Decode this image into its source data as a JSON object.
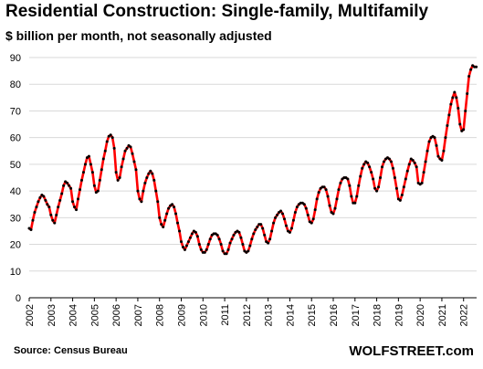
{
  "chart_data": {
    "type": "line",
    "title": "Residential Construction:  Single-family, Multifamily",
    "subtitle": "$ billion per month, not seasonally adjusted",
    "xlabel": "",
    "ylabel": "",
    "ylim": [
      0,
      90
    ],
    "yticks": [
      0,
      10,
      20,
      30,
      40,
      50,
      60,
      70,
      80,
      90
    ],
    "xlim": [
      2002,
      2022.6
    ],
    "xticks": [
      "2002",
      "2003",
      "2004",
      "2005",
      "2006",
      "2007",
      "2008",
      "2009",
      "2010",
      "2011",
      "2012",
      "2013",
      "2014",
      "2015",
      "2016",
      "2017",
      "2018",
      "2019",
      "2020",
      "2021",
      "2022"
    ],
    "grid": "horizontal",
    "line_color": "#ff0000",
    "marker_color": "#000000",
    "series": [
      {
        "values": [
          26,
          25.5,
          29,
          32,
          34,
          36,
          37.5,
          38.5,
          38,
          36.5,
          35,
          34,
          31,
          29,
          28,
          31,
          34,
          36.5,
          39,
          42,
          43.5,
          43,
          42,
          41,
          36,
          34,
          33,
          37,
          40.5,
          44,
          47,
          50,
          52.5,
          53,
          50,
          47,
          42,
          39.5,
          40,
          44,
          48,
          52,
          55,
          58.5,
          60.5,
          61,
          60,
          56,
          47,
          44,
          45,
          49,
          52,
          55,
          56,
          57,
          56.5,
          54,
          51,
          48,
          40,
          37,
          36,
          40,
          43,
          45,
          46.5,
          47.5,
          46.5,
          44,
          40,
          36,
          30,
          27.5,
          26.5,
          29,
          31.5,
          33.5,
          34.5,
          35,
          34,
          31.5,
          28,
          25,
          21,
          19,
          18,
          19.5,
          21,
          22.5,
          24,
          25,
          24.5,
          23,
          20,
          18,
          17,
          17,
          18,
          20,
          22,
          23.5,
          24,
          24,
          23.5,
          22,
          20,
          17.5,
          16.5,
          16.5,
          18,
          20.5,
          22,
          23.5,
          24.5,
          25,
          24.5,
          22.5,
          20,
          17.5,
          17,
          17.5,
          19.5,
          22,
          24,
          25.5,
          26.5,
          27.5,
          27.5,
          26,
          23.5,
          21,
          20.5,
          22,
          25,
          28,
          30,
          31,
          32,
          32.5,
          31.5,
          29.5,
          27,
          25,
          24.5,
          26,
          29,
          32,
          34,
          35,
          35.5,
          35.5,
          35,
          33.5,
          31,
          28.5,
          28,
          29.5,
          33,
          37,
          39.5,
          41,
          41.5,
          41.5,
          40.5,
          38,
          34.5,
          32,
          31.5,
          33.5,
          37,
          40.5,
          43,
          44.5,
          45,
          45,
          44.5,
          42,
          38,
          35.5,
          35.5,
          38,
          42,
          45.5,
          48.5,
          50,
          51,
          50.5,
          49,
          47,
          44.5,
          41,
          40,
          41.5,
          45,
          49,
          51,
          52,
          52.5,
          52,
          51,
          48.5,
          45,
          41,
          37,
          36.5,
          38.5,
          41.5,
          44.5,
          47.5,
          50,
          52,
          51.5,
          50.5,
          49,
          43,
          42.5,
          43,
          47,
          51,
          55,
          58.5,
          60,
          60.5,
          60,
          57,
          53,
          52,
          51.5,
          55,
          60,
          64.5,
          68.5,
          72.5,
          75,
          77,
          75,
          71,
          65,
          62.5,
          63,
          70,
          76.5,
          83,
          85.5,
          87,
          86.5,
          86.5
        ]
      }
    ]
  },
  "source_label": "Source: Census Bureau",
  "brand_label": "WOLFSTREET.com"
}
